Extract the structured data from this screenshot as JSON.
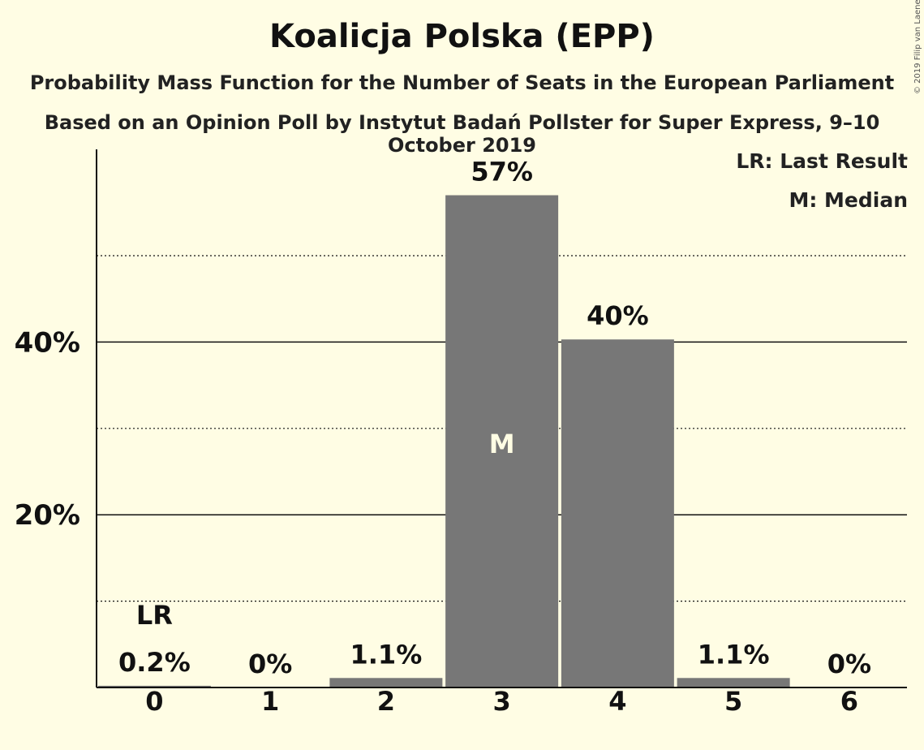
{
  "title": "Koalicja Polska (EPP)",
  "subtitle": "Probability Mass Function for the Number of Seats in the European Parliament",
  "subtitle2": "Based on an Opinion Poll by Instytut Badań Pollster for Super Express, 9–10 October 2019",
  "copyright": "© 2019 Filip van Laenen",
  "legend": {
    "last_result": "LR: Last Result",
    "median": "M: Median"
  },
  "colors": {
    "background": "#FFFDE4",
    "bar": "#777777",
    "axis": "#111111"
  },
  "chart_data": {
    "type": "bar",
    "categories": [
      "0",
      "1",
      "2",
      "3",
      "4",
      "5",
      "6"
    ],
    "values": [
      0.2,
      0,
      1.1,
      57,
      40.3,
      1.1,
      0
    ],
    "value_labels": [
      "0.2%",
      "0%",
      "1.1%",
      "57%",
      "40%",
      "1.1%",
      "0%"
    ],
    "y_tick_labels": [
      "20%",
      "40%"
    ],
    "y_ticks": [
      20,
      40
    ],
    "y_minor_ticks": [
      10,
      30,
      50
    ],
    "ylim": [
      0,
      62.4
    ],
    "last_result_index": 0,
    "last_result_label": "LR",
    "median_index": 3,
    "median_label": "M",
    "grid": true,
    "legend_position": "top-right"
  }
}
